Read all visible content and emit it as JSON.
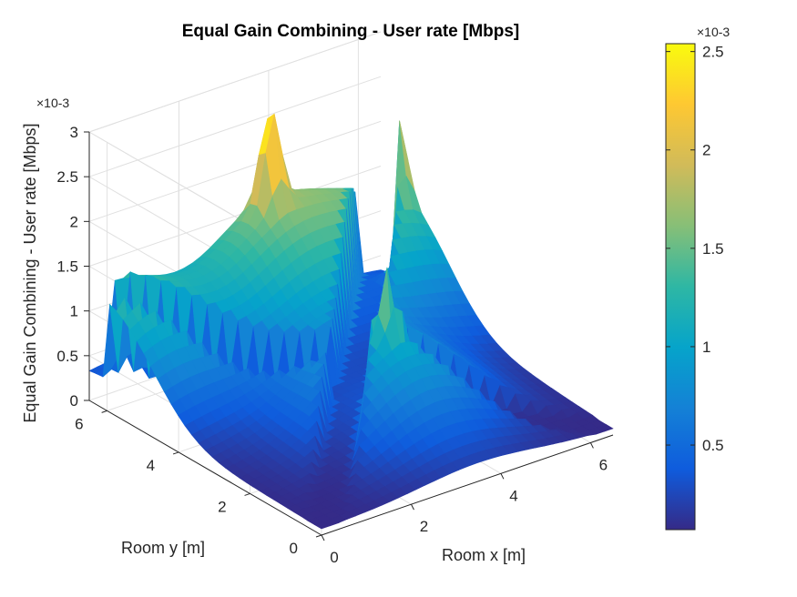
{
  "chart_data": {
    "type": "surface",
    "title": "Equal Gain Combining - User rate [Mbps]",
    "xlabel": "Room x [m]",
    "ylabel": "Room y [m]",
    "zlabel": "Equal Gain Combining - User rate [Mbps]",
    "x_ticks": [
      "0",
      "2",
      "4",
      "6"
    ],
    "y_ticks": [
      "0",
      "2",
      "4",
      "6"
    ],
    "z_ticks": [
      "0",
      "0.5",
      "1",
      "1.5",
      "2",
      "2.5",
      "3"
    ],
    "z_exponent_label": "×10-3",
    "xlim": [
      0,
      6.5
    ],
    "ylim": [
      0,
      6.5
    ],
    "zlim": [
      0,
      0.003
    ],
    "grid": true,
    "colormap": "parula",
    "colorbar": {
      "location": "right",
      "limits": [
        7e-05,
        0.00254
      ],
      "ticks": [
        "0.5",
        "1",
        "1.5",
        "2",
        "2.5"
      ],
      "tick_values": [
        0.0005,
        0.001,
        0.0015,
        0.002,
        0.0025
      ],
      "exponent_label": "×10-3"
    },
    "peaks": [
      {
        "x": 0.5,
        "y": 6.0,
        "z": 0.00225
      },
      {
        "x": 3.8,
        "y": 6.2,
        "z": 0.00255
      },
      {
        "x": 6.3,
        "y": 5.8,
        "z": 0.0021
      },
      {
        "x": 3.5,
        "y": 2.5,
        "z": 0.00185
      }
    ],
    "z_min": 7e-05
  },
  "colors": {
    "axis": "#262626",
    "grid": "#e0e0e0",
    "parula": [
      "#352a87",
      "#0f5cdd",
      "#1481d6",
      "#06a4ca",
      "#2eb7a4",
      "#87bf77",
      "#d1bb59",
      "#fec832",
      "#f9fb0e"
    ]
  }
}
